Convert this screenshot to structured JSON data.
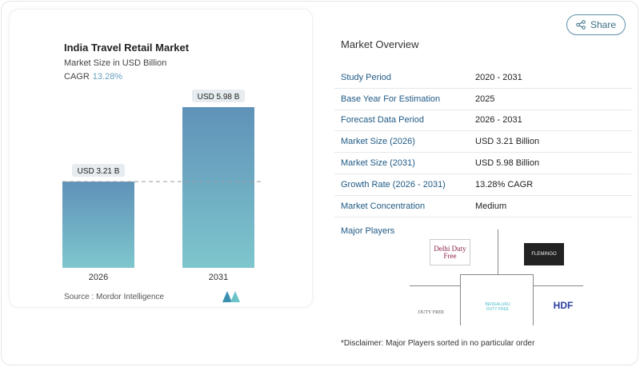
{
  "header": {
    "share_label": "Share",
    "share_icon": "share-icon"
  },
  "chart_card": {
    "title": "India Travel Retail Market",
    "subtitle": "Market Size in USD Billion",
    "cagr_label": "CAGR",
    "cagr_value": "13.28%",
    "source": "Source :  Mordor Intelligence"
  },
  "chart_data": {
    "type": "bar",
    "categories": [
      "2026",
      "2031"
    ],
    "values": [
      3.21,
      5.98
    ],
    "data_labels": [
      "USD 3.21 B",
      "USD 5.98 B"
    ],
    "title": "India Travel Retail Market",
    "ylabel": "Market Size in USD Billion",
    "colors": [
      "#6a9fc0",
      "#7cc3cc"
    ]
  },
  "overview": {
    "title": "Market Overview",
    "rows": [
      {
        "label": "Study Period",
        "value": "2020 - 2031"
      },
      {
        "label": "Base Year For Estimation",
        "value": "2025"
      },
      {
        "label": "Forecast Data Period",
        "value": "2026 - 2031"
      },
      {
        "label": "Market Size (2026)",
        "value": "USD 3.21 Billion"
      },
      {
        "label": "Market Size (2031)",
        "value": "USD 5.98 Billion"
      },
      {
        "label": "Growth Rate (2026 - 2031)",
        "value": "13.28% CAGR"
      },
      {
        "label": "Market Concentration",
        "value": "Medium"
      }
    ]
  },
  "players": {
    "title": "Major Players",
    "logos": [
      "Delhi Duty Free",
      "FLEMINGO",
      "DUTY FREE",
      "BENGALURU DUTY FREE",
      "HDF"
    ]
  },
  "disclaimer": "*Disclaimer: Major Players sorted in no particular order"
}
